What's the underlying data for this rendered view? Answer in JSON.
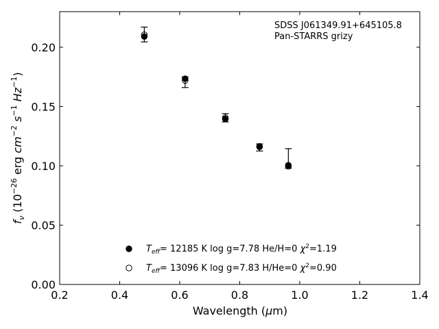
{
  "chart_data": {
    "type": "scatter",
    "xlabel": "Wavelength (μm)",
    "ylabel": "fν (10⁻²⁶ erg cm⁻² s⁻¹ Hz⁻¹)",
    "xlim": [
      0.2,
      1.4
    ],
    "ylim": [
      0.0,
      0.23
    ],
    "xticks": [
      0.2,
      0.4,
      0.6,
      0.8,
      1.0,
      1.2,
      1.4
    ],
    "xtick_labels": [
      "0.2",
      "0.4",
      "0.6",
      "0.8",
      "1.0",
      "1.2",
      "1.4"
    ],
    "yticks": [
      0.0,
      0.05,
      0.1,
      0.15,
      0.2
    ],
    "ytick_labels": [
      "0.00",
      "0.05",
      "0.10",
      "0.15",
      "0.20"
    ],
    "annotation": [
      "SDSS J061349.91+645105.8",
      "Pan-STARRS grizy"
    ],
    "observed": {
      "x": [
        0.482,
        0.618,
        0.752,
        0.866,
        0.962
      ],
      "y": [
        0.209,
        0.1715,
        0.14,
        0.1155,
        0.1
      ],
      "err_low": [
        0.0045,
        0.0055,
        0.003,
        0.003,
        0.002
      ],
      "err_high": [
        0.008,
        0.0035,
        0.004,
        0.003,
        0.0145
      ]
    },
    "series": [
      {
        "name": "Teff= 12185 K  log g=7.78  He/H=0  χ²=1.19",
        "marker": "filled-circle",
        "x": [
          0.482,
          0.618,
          0.752,
          0.866,
          0.962
        ],
        "y": [
          0.209,
          0.1735,
          0.1395,
          0.1165,
          0.1005
        ]
      },
      {
        "name": "Teff= 13096 K  log g=7.83  H/He=0  χ²=0.90",
        "marker": "open-circle",
        "x": [
          0.482,
          0.618,
          0.752,
          0.866,
          0.962
        ],
        "y": [
          0.2105,
          0.172,
          0.1405,
          0.116,
          0.0995
        ]
      }
    ],
    "legend": {
      "placement": "lower-center",
      "entries": [
        {
          "teff": "= 12185 K  log g=7.78  He/H=0",
          "chi": "=1.19"
        },
        {
          "teff": "= 13096 K  log g=7.83  H/He=0",
          "chi": "=0.90"
        }
      ]
    },
    "grid": false
  }
}
